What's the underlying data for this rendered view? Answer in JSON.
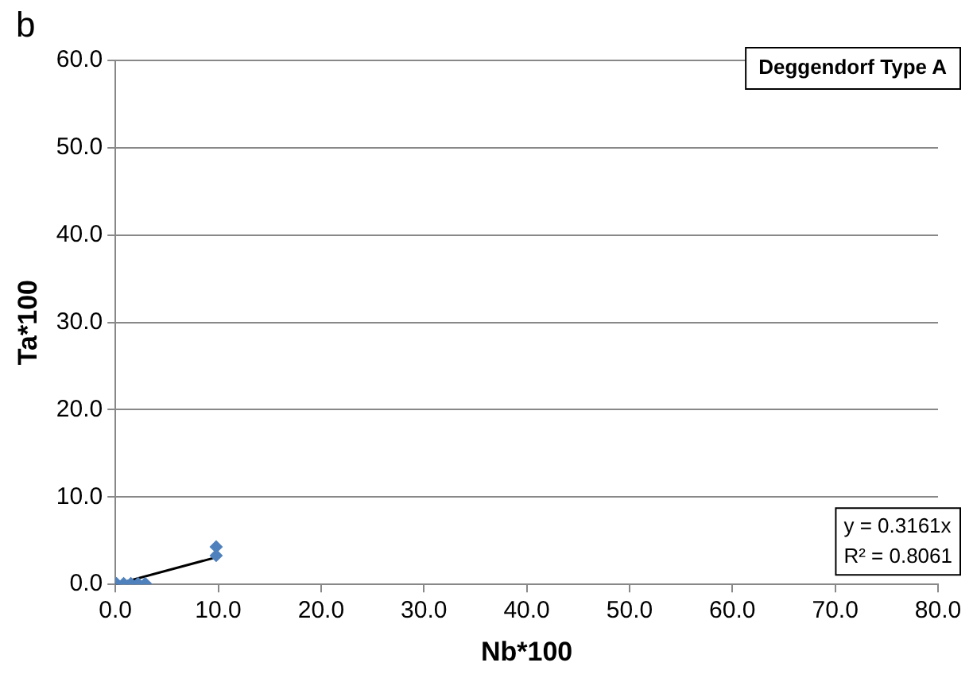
{
  "chart_data": {
    "type": "scatter",
    "title": "Deggendorf Type A",
    "xlabel": "Nb*100",
    "ylabel": "Ta*100",
    "annotations": [
      "b",
      "y = 0.3161x",
      "R² = 0.8061"
    ],
    "xlim": [
      0,
      80
    ],
    "xticks": [
      {
        "value": 0,
        "label": "0.0"
      },
      {
        "value": 10,
        "label": "10.0"
      },
      {
        "value": 20,
        "label": "20.0"
      },
      {
        "value": 30,
        "label": "30.0"
      },
      {
        "value": 40,
        "label": "40.0"
      },
      {
        "value": 50,
        "label": "50.0"
      },
      {
        "value": 60,
        "label": "60.0"
      },
      {
        "value": 70,
        "label": "70.0"
      },
      {
        "value": 80,
        "label": "80.0"
      }
    ],
    "ylim": [
      0,
      60
    ],
    "yticks": [
      {
        "value": 0,
        "label": "0.0"
      },
      {
        "value": 10,
        "label": "10.0"
      },
      {
        "value": 20,
        "label": "20.0"
      },
      {
        "value": 30,
        "label": "30.0"
      },
      {
        "value": 40,
        "label": "40.0"
      },
      {
        "value": 50,
        "label": "50.0"
      },
      {
        "value": 60,
        "label": "60.0"
      }
    ],
    "grid": "y",
    "legend": false,
    "marker": "diamond",
    "series": [
      {
        "type": "scatter",
        "color": "#4f81bd",
        "x": [
          0.1,
          0.8,
          1.5,
          2.2,
          2.9,
          9.8,
          9.8
        ],
        "values": [
          0.1,
          0.1,
          0.1,
          0.1,
          0.1,
          3.3,
          4.3
        ]
      },
      {
        "type": "line",
        "color": "#000000",
        "marker": "none",
        "x": [
          0,
          9.8
        ],
        "values": [
          0,
          3.1
        ]
      }
    ]
  }
}
